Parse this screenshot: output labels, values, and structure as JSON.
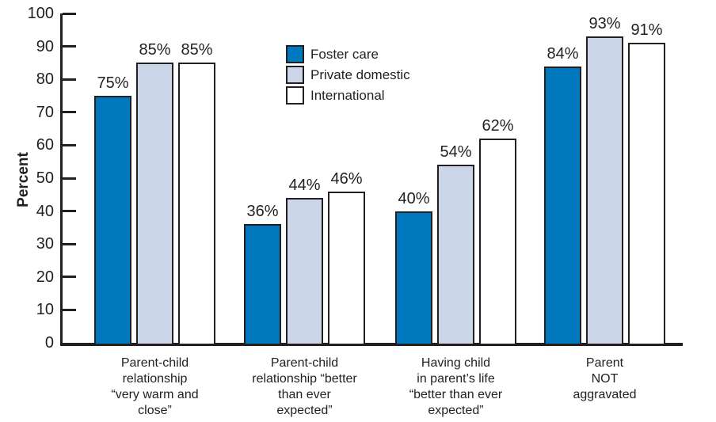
{
  "chart_data": {
    "type": "bar",
    "title": "",
    "ylabel": "Percent",
    "xlabel": "",
    "ylim": [
      0,
      100
    ],
    "yticks": [
      0,
      10,
      20,
      30,
      40,
      50,
      60,
      70,
      80,
      90,
      100
    ],
    "grid": false,
    "legend_position": "upper-center-inside-plot",
    "categories": [
      {
        "lines": [
          "Parent-child",
          "relationship",
          "“very warm and",
          "close”"
        ]
      },
      {
        "lines": [
          "Parent-child",
          "relationship “better",
          "than ever",
          "expected”"
        ]
      },
      {
        "lines": [
          "Having child",
          "in parent’s life",
          "“better than ever",
          "expected”"
        ]
      },
      {
        "lines": [
          "Parent",
          "NOT",
          "aggravated"
        ]
      }
    ],
    "series": [
      {
        "name": "Foster care",
        "color": "#0078BE",
        "values": [
          75,
          36,
          40,
          84
        ],
        "labels": [
          "75%",
          "36%",
          "40%",
          "84%"
        ]
      },
      {
        "name": "Private domestic",
        "color": "#CBD7E8",
        "values": [
          85,
          44,
          54,
          93
        ],
        "labels": [
          "85%",
          "44%",
          "54%",
          "93%"
        ]
      },
      {
        "name": "International",
        "color": "#FFFFFF",
        "values": [
          85,
          46,
          62,
          91
        ],
        "labels": [
          "85%",
          "46%",
          "62%",
          "91%"
        ]
      }
    ]
  },
  "colors": {
    "ink": "#231F20",
    "background": "#FFFFFF",
    "foster_care_blue": "#0078BE",
    "private_domestic_light_blue": "#CBD7E8",
    "international_white": "#FFFFFF"
  }
}
